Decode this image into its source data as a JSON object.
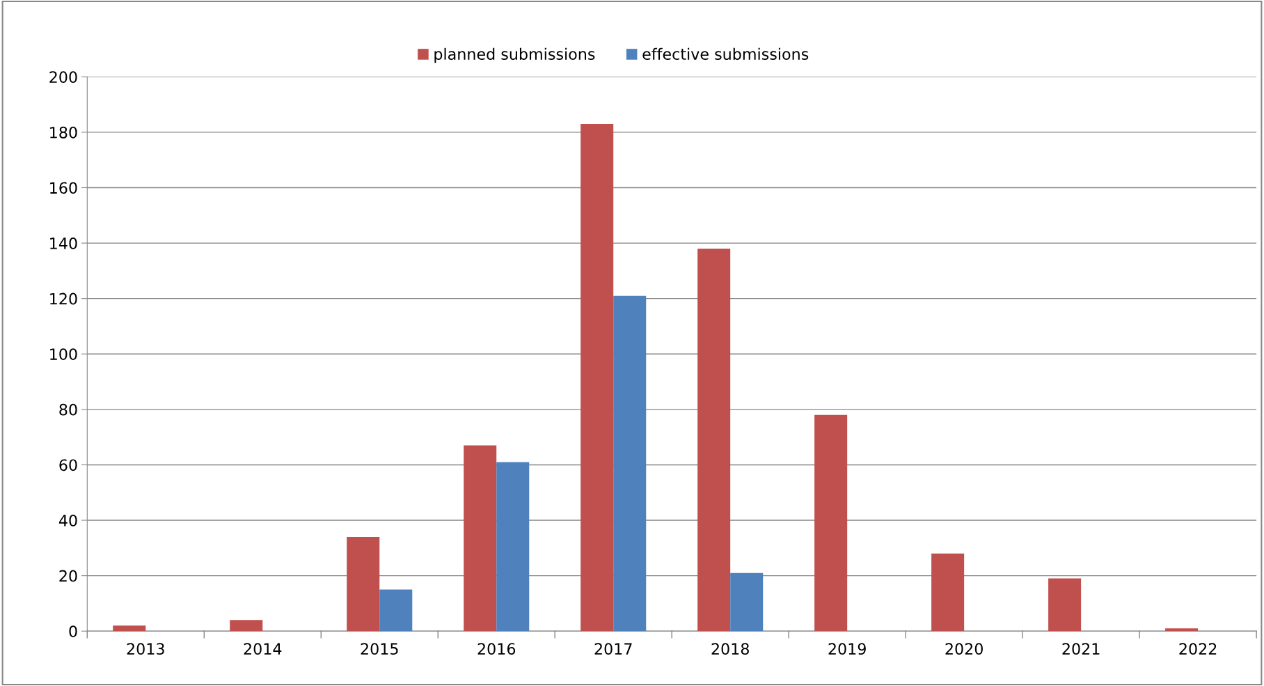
{
  "chart_data": {
    "type": "bar",
    "categories": [
      "2013",
      "2014",
      "2015",
      "2016",
      "2017",
      "2018",
      "2019",
      "2020",
      "2021",
      "2022"
    ],
    "series": [
      {
        "name": "planned submissions",
        "color": "#c0504d",
        "values": [
          2,
          4,
          34,
          67,
          183,
          138,
          78,
          28,
          19,
          1
        ]
      },
      {
        "name": "effective submissions",
        "color": "#4f81bd",
        "values": [
          null,
          null,
          15,
          61,
          121,
          21,
          null,
          null,
          null,
          null
        ]
      }
    ],
    "ylim": [
      0,
      200
    ],
    "yticks": [
      0,
      20,
      40,
      60,
      80,
      100,
      120,
      140,
      160,
      180,
      200
    ],
    "grid": "y",
    "legend": "top"
  }
}
